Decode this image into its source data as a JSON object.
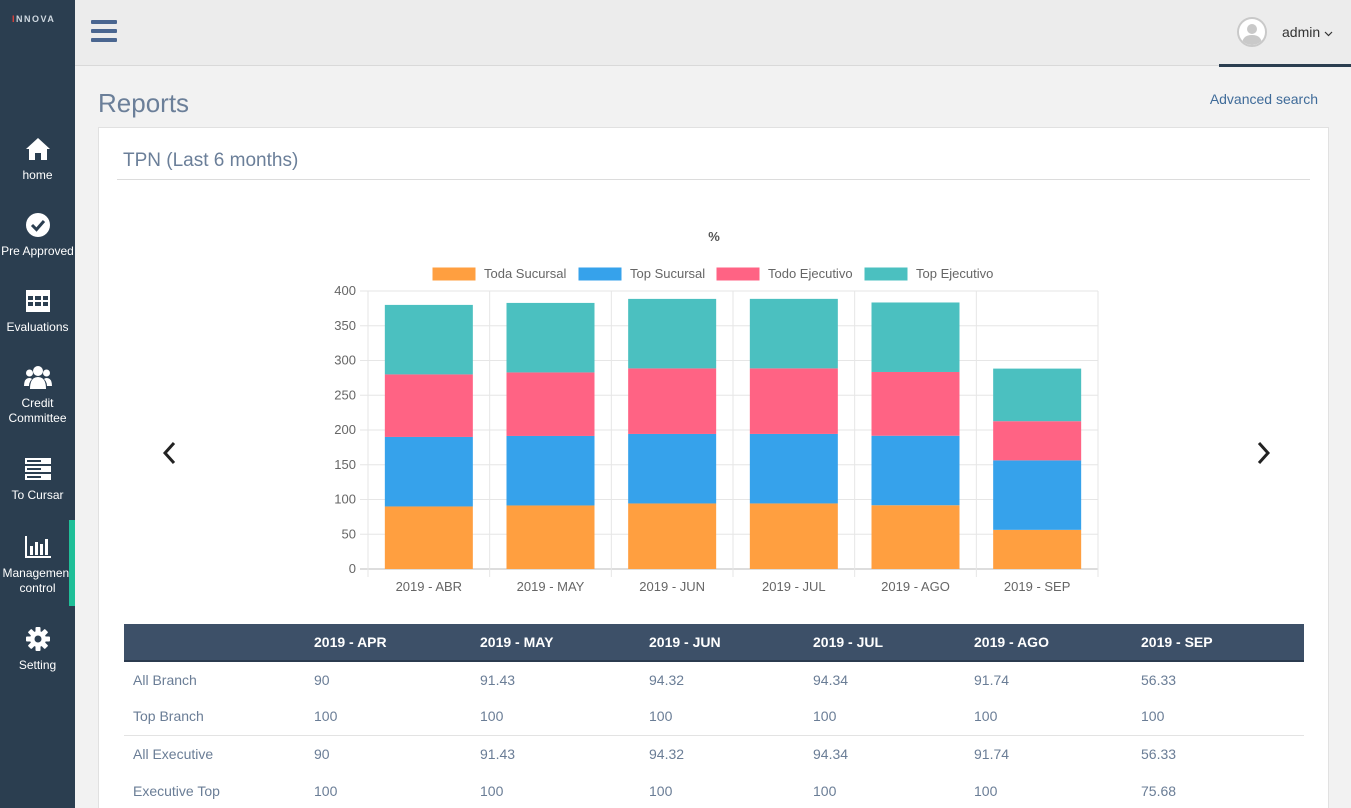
{
  "sidebar": {
    "logo": "INNOVA",
    "items": [
      {
        "label": "home"
      },
      {
        "label": "Pre Approved"
      },
      {
        "label": "Evaluations"
      },
      {
        "label_line1": "Credit",
        "label_line2": "Committee"
      },
      {
        "label": "To Cursar"
      },
      {
        "label_line1": "Management",
        "label_line2": "control"
      },
      {
        "label": "Setting"
      }
    ],
    "active_color": "#1fbf98"
  },
  "header": {
    "user": "admin"
  },
  "page": {
    "title": "Reports",
    "advanced_search": "Advanced search"
  },
  "card": {
    "title": "TPN (Last 6 months)"
  },
  "chart_data": {
    "type": "bar",
    "stacked": true,
    "title": "%",
    "categories": [
      "2019 - ABR",
      "2019 - MAY",
      "2019 - JUN",
      "2019 - JUL",
      "2019 - AGO",
      "2019 - SEP"
    ],
    "series": [
      {
        "name": "Toda Sucursal",
        "color": "#ff9f40",
        "values": [
          90,
          91.43,
          94.32,
          94.34,
          91.74,
          56.33
        ]
      },
      {
        "name": "Top Sucursal",
        "color": "#36a2eb",
        "values": [
          100,
          100,
          100,
          100,
          100,
          100
        ]
      },
      {
        "name": "Todo Ejecutivo",
        "color": "#ff6384",
        "values": [
          90,
          91.43,
          94.32,
          94.34,
          91.74,
          56.33
        ]
      },
      {
        "name": "Top Ejecutivo",
        "color": "#4bc0c0",
        "values": [
          100,
          100,
          100,
          100,
          100,
          75.68
        ]
      }
    ],
    "ylim": [
      0,
      400
    ],
    "yticks": [
      0,
      50,
      100,
      150,
      200,
      250,
      300,
      350,
      400
    ],
    "legend": "top",
    "grid": true
  },
  "table": {
    "headers": [
      "",
      "2019 - APR",
      "2019 - MAY",
      "2019 - JUN",
      "2019 - JUL",
      "2019 - AGO",
      "2019 - SEP"
    ],
    "rows": [
      [
        "All Branch",
        "90",
        "91.43",
        "94.32",
        "94.34",
        "91.74",
        "56.33"
      ],
      [
        "Top Branch",
        "100",
        "100",
        "100",
        "100",
        "100",
        "100"
      ],
      [
        "All Executive",
        "90",
        "91.43",
        "94.32",
        "94.34",
        "91.74",
        "56.33"
      ],
      [
        "Executive Top",
        "100",
        "100",
        "100",
        "100",
        "100",
        "75.68"
      ]
    ]
  }
}
